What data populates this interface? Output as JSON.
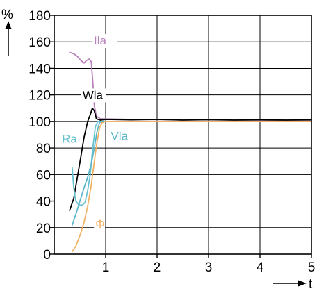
{
  "chart_data": {
    "type": "line",
    "y_unit": "%",
    "x_unit": "t",
    "xlim": [
      0,
      5
    ],
    "ylim": [
      0,
      180
    ],
    "x_ticks": [
      1,
      2,
      3,
      4,
      5
    ],
    "x_tick_labels": [
      "1",
      "2",
      "3",
      "4",
      "5"
    ],
    "y_ticks": [
      0,
      20,
      40,
      60,
      80,
      100,
      120,
      140,
      160,
      180
    ],
    "y_tick_labels": [
      "0",
      "20",
      "40",
      "60",
      "80",
      "100",
      "120",
      "140",
      "160",
      "180"
    ],
    "grid": true,
    "series": [
      {
        "name": "Ila",
        "color": "#b87fbd",
        "points": [
          [
            0.3,
            152
          ],
          [
            0.38,
            151
          ],
          [
            0.45,
            149
          ],
          [
            0.52,
            146
          ],
          [
            0.58,
            144
          ],
          [
            0.63,
            146
          ],
          [
            0.68,
            147
          ],
          [
            0.72,
            145
          ],
          [
            0.75,
            130
          ],
          [
            0.78,
            112
          ],
          [
            0.82,
            104
          ],
          [
            0.9,
            102
          ],
          [
            1.0,
            102
          ],
          [
            1.5,
            101.5
          ],
          [
            2,
            101.3
          ],
          [
            3,
            101.2
          ],
          [
            4,
            101
          ],
          [
            5,
            101
          ]
        ],
        "label_at": [
          0.77,
          158
        ]
      },
      {
        "name": "Wla",
        "color": "#000000",
        "points": [
          [
            0.3,
            33
          ],
          [
            0.38,
            42
          ],
          [
            0.45,
            58
          ],
          [
            0.52,
            74
          ],
          [
            0.58,
            88
          ],
          [
            0.65,
            100
          ],
          [
            0.7,
            105
          ],
          [
            0.74,
            110
          ],
          [
            0.78,
            108
          ],
          [
            0.82,
            102
          ],
          [
            0.9,
            101
          ],
          [
            1.0,
            101.5
          ],
          [
            1.5,
            101.2
          ],
          [
            2,
            101.5
          ],
          [
            2.5,
            101
          ],
          [
            3,
            101.3
          ],
          [
            3.5,
            101
          ],
          [
            4,
            101.2
          ],
          [
            4.5,
            101
          ],
          [
            5,
            101.2
          ]
        ],
        "label_at": [
          0.55,
          117
        ]
      },
      {
        "name": "Ra",
        "color": "#66c2d1",
        "points": [
          [
            0.35,
            65
          ],
          [
            0.38,
            50
          ],
          [
            0.42,
            40
          ],
          [
            0.48,
            37
          ],
          [
            0.55,
            37
          ],
          [
            0.6,
            39
          ],
          [
            0.65,
            48
          ],
          [
            0.7,
            60
          ],
          [
            0.75,
            80
          ],
          [
            0.8,
            96
          ],
          [
            0.85,
            100
          ],
          [
            1.0,
            100
          ],
          [
            1.5,
            100
          ],
          [
            2,
            100
          ],
          [
            3,
            100
          ],
          [
            4,
            100
          ],
          [
            5,
            100
          ]
        ],
        "label_at": [
          0.15,
          84
        ]
      },
      {
        "name": "Vla",
        "color": "#5ab6c9",
        "points": [
          [
            0.35,
            22
          ],
          [
            0.42,
            30
          ],
          [
            0.5,
            40
          ],
          [
            0.58,
            50
          ],
          [
            0.65,
            58
          ],
          [
            0.72,
            68
          ],
          [
            0.78,
            80
          ],
          [
            0.83,
            92
          ],
          [
            0.88,
            99
          ],
          [
            0.95,
            100
          ],
          [
            1.0,
            100
          ],
          [
            1.5,
            100
          ],
          [
            2,
            100
          ],
          [
            3,
            100
          ],
          [
            4,
            100
          ],
          [
            5,
            100
          ]
        ],
        "label_at": [
          1.1,
          86
        ]
      },
      {
        "name": "Φ",
        "color": "#f2b266",
        "points": [
          [
            0.35,
            2
          ],
          [
            0.42,
            6
          ],
          [
            0.5,
            14
          ],
          [
            0.58,
            24
          ],
          [
            0.65,
            36
          ],
          [
            0.72,
            52
          ],
          [
            0.78,
            70
          ],
          [
            0.83,
            84
          ],
          [
            0.88,
            95
          ],
          [
            0.93,
            99
          ],
          [
            1.0,
            100
          ],
          [
            1.5,
            100
          ],
          [
            2,
            100
          ],
          [
            3,
            100
          ],
          [
            4,
            100
          ],
          [
            5,
            100
          ]
        ],
        "label_at": [
          0.8,
          20
        ]
      }
    ]
  }
}
